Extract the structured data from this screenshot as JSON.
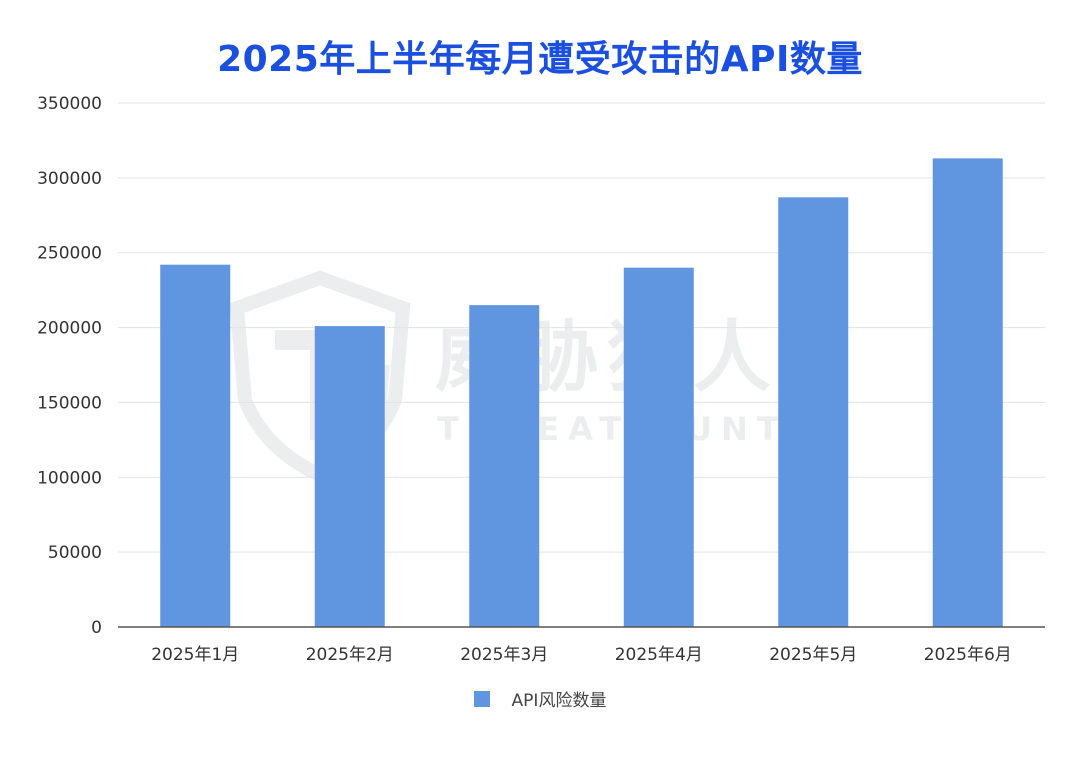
{
  "chart_data": {
    "type": "bar",
    "title": "2025年上半年每月遭受攻击的API数量",
    "categories": [
      "2025年1月",
      "2025年2月",
      "2025年3月",
      "2025年4月",
      "2025年5月",
      "2025年6月"
    ],
    "series": [
      {
        "name": "API风险数量",
        "values": [
          242000,
          201000,
          215000,
          240000,
          287000,
          313000
        ],
        "color": "#6096e0"
      }
    ],
    "ylim": [
      0,
      350000
    ],
    "yticks": [
      "350000",
      "300000",
      "250000",
      "200000",
      "150000",
      "100000",
      "50000",
      "0"
    ],
    "grid": true,
    "legend_position": "bottom-center"
  },
  "watermark": {
    "cn_text": "威胁猎人",
    "en_text": "THREAT HUNTER",
    "logo_icon": "shield-th-logo-icon"
  },
  "colors": {
    "title": "#1a4fe0",
    "bar": "#6096e0",
    "grid": "#e3e3e3",
    "axis": "#555555"
  }
}
